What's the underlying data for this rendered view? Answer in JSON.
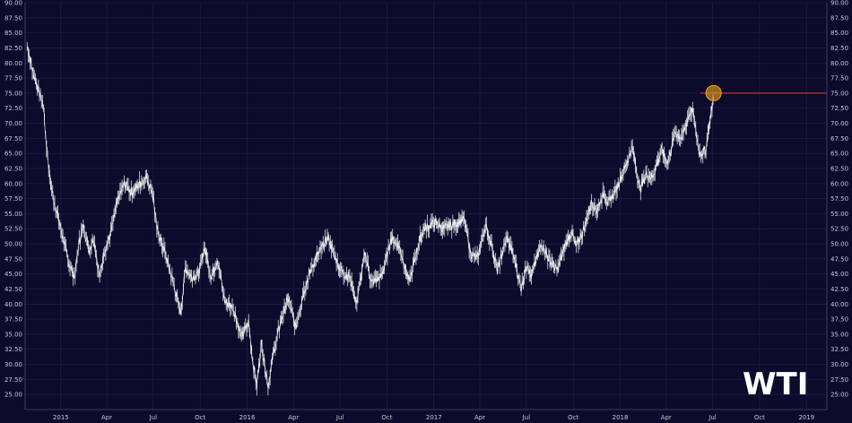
{
  "chart_data": {
    "type": "line",
    "title": "",
    "xlabel": "",
    "ylabel": "",
    "ylim": [
      22.5,
      90.0
    ],
    "xlim": [
      "2014-10-23",
      "2019-02-10"
    ],
    "grid": true,
    "annotation_text": "WTI",
    "yticks": [
      "25.00",
      "27.50",
      "30.00",
      "32.50",
      "35.00",
      "37.50",
      "40.00",
      "42.50",
      "45.00",
      "47.50",
      "50.00",
      "52.50",
      "55.00",
      "57.50",
      "60.00",
      "62.50",
      "65.00",
      "67.50",
      "70.00",
      "72.50",
      "75.00",
      "77.50",
      "80.00",
      "82.50",
      "85.00",
      "87.50",
      "90.00"
    ],
    "xticks": [
      {
        "label": "2015",
        "date": "2015-01-01"
      },
      {
        "label": "Apr",
        "date": "2015-04-01"
      },
      {
        "label": "Jul",
        "date": "2015-07-01"
      },
      {
        "label": "Oct",
        "date": "2015-10-01"
      },
      {
        "label": "2016",
        "date": "2016-01-01"
      },
      {
        "label": "Apr",
        "date": "2016-04-01"
      },
      {
        "label": "Jul",
        "date": "2016-07-01"
      },
      {
        "label": "Oct",
        "date": "2016-10-01"
      },
      {
        "label": "2017",
        "date": "2017-01-01"
      },
      {
        "label": "Apr",
        "date": "2017-04-01"
      },
      {
        "label": "Jul",
        "date": "2017-07-01"
      },
      {
        "label": "Oct",
        "date": "2017-10-01"
      },
      {
        "label": "2018",
        "date": "2018-01-01"
      },
      {
        "label": "Apr",
        "date": "2018-04-01"
      },
      {
        "label": "Jul",
        "date": "2018-07-01"
      },
      {
        "label": "Oct",
        "date": "2018-10-01"
      },
      {
        "label": "2019",
        "date": "2019-01-01"
      }
    ],
    "series": [
      {
        "color": "#ffffff",
        "points": [
          [
            "2014-10-27",
            82.8
          ],
          [
            "2014-11-06",
            79.0
          ],
          [
            "2014-11-18",
            75.5
          ],
          [
            "2014-11-28",
            73.0
          ],
          [
            "2014-12-02",
            68.0
          ],
          [
            "2014-12-12",
            60.0
          ],
          [
            "2014-12-19",
            57.0
          ],
          [
            "2015-01-05",
            51.0
          ],
          [
            "2015-01-16",
            47.0
          ],
          [
            "2015-01-28",
            44.5
          ],
          [
            "2015-02-05",
            50.0
          ],
          [
            "2015-02-14",
            53.0
          ],
          [
            "2015-02-25",
            49.0
          ],
          [
            "2015-03-06",
            51.0
          ],
          [
            "2015-03-18",
            44.5
          ],
          [
            "2015-03-26",
            48.5
          ],
          [
            "2015-04-08",
            51.5
          ],
          [
            "2015-04-22",
            57.0
          ],
          [
            "2015-05-06",
            60.0
          ],
          [
            "2015-05-20",
            58.5
          ],
          [
            "2015-06-05",
            60.0
          ],
          [
            "2015-06-18",
            61.0
          ],
          [
            "2015-06-30",
            58.5
          ],
          [
            "2015-07-08",
            52.5
          ],
          [
            "2015-07-22",
            49.0
          ],
          [
            "2015-08-05",
            45.0
          ],
          [
            "2015-08-24",
            38.5
          ],
          [
            "2015-09-02",
            46.0
          ],
          [
            "2015-09-14",
            44.5
          ],
          [
            "2015-09-29",
            45.0
          ],
          [
            "2015-10-09",
            49.5
          ],
          [
            "2015-10-23",
            44.5
          ],
          [
            "2015-11-04",
            47.5
          ],
          [
            "2015-11-18",
            40.5
          ],
          [
            "2015-12-04",
            39.5
          ],
          [
            "2015-12-21",
            34.5
          ],
          [
            "2016-01-04",
            37.0
          ],
          [
            "2016-01-12",
            30.5
          ],
          [
            "2016-01-20",
            26.5
          ],
          [
            "2016-01-29",
            33.5
          ],
          [
            "2016-02-11",
            26.5
          ],
          [
            "2016-02-22",
            32.0
          ],
          [
            "2016-03-08",
            37.5
          ],
          [
            "2016-03-22",
            41.0
          ],
          [
            "2016-04-05",
            36.0
          ],
          [
            "2016-04-19",
            41.5
          ],
          [
            "2016-05-02",
            45.0
          ],
          [
            "2016-05-17",
            48.0
          ],
          [
            "2016-06-08",
            51.0
          ],
          [
            "2016-06-27",
            46.5
          ],
          [
            "2016-07-08",
            45.0
          ],
          [
            "2016-07-20",
            44.5
          ],
          [
            "2016-08-02",
            40.0
          ],
          [
            "2016-08-19",
            48.5
          ],
          [
            "2016-09-01",
            43.5
          ],
          [
            "2016-09-20",
            44.5
          ],
          [
            "2016-10-10",
            51.0
          ],
          [
            "2016-10-25",
            49.5
          ],
          [
            "2016-11-14",
            43.5
          ],
          [
            "2016-11-30",
            49.5
          ],
          [
            "2016-12-12",
            52.5
          ],
          [
            "2017-01-03",
            53.5
          ],
          [
            "2017-01-20",
            52.5
          ],
          [
            "2017-02-15",
            53.5
          ],
          [
            "2017-03-01",
            54.0
          ],
          [
            "2017-03-14",
            48.5
          ],
          [
            "2017-03-27",
            47.5
          ],
          [
            "2017-04-12",
            53.0
          ],
          [
            "2017-04-25",
            49.5
          ],
          [
            "2017-05-05",
            45.5
          ],
          [
            "2017-05-24",
            51.0
          ],
          [
            "2017-06-06",
            48.0
          ],
          [
            "2017-06-21",
            42.5
          ],
          [
            "2017-07-03",
            47.0
          ],
          [
            "2017-07-10",
            44.5
          ],
          [
            "2017-07-31",
            50.0
          ],
          [
            "2017-08-14",
            47.5
          ],
          [
            "2017-08-31",
            45.5
          ],
          [
            "2017-09-14",
            49.5
          ],
          [
            "2017-09-28",
            52.0
          ],
          [
            "2017-10-06",
            49.5
          ],
          [
            "2017-10-20",
            52.0
          ],
          [
            "2017-11-06",
            57.0
          ],
          [
            "2017-11-15",
            55.5
          ],
          [
            "2017-12-01",
            58.5
          ],
          [
            "2017-12-08",
            56.5
          ],
          [
            "2017-12-26",
            59.5
          ],
          [
            "2018-01-05",
            61.5
          ],
          [
            "2018-01-25",
            66.0
          ],
          [
            "2018-02-09",
            59.0
          ],
          [
            "2018-02-21",
            61.5
          ],
          [
            "2018-03-05",
            61.0
          ],
          [
            "2018-03-23",
            65.5
          ],
          [
            "2018-04-04",
            63.5
          ],
          [
            "2018-04-19",
            68.5
          ],
          [
            "2018-05-02",
            67.5
          ],
          [
            "2018-05-16",
            71.5
          ],
          [
            "2018-05-22",
            72.3
          ],
          [
            "2018-06-05",
            65.0
          ],
          [
            "2018-06-18",
            65.5
          ],
          [
            "2018-06-22",
            68.5
          ],
          [
            "2018-07-03",
            74.2
          ]
        ]
      }
    ],
    "reference_line": {
      "y": 75.0,
      "from": "2018-06-07",
      "to": "2019-02-10",
      "color": "#e0401f"
    },
    "highlight_marker": {
      "date": "2018-07-03",
      "y": 75.0,
      "color": "#f4a321"
    }
  }
}
